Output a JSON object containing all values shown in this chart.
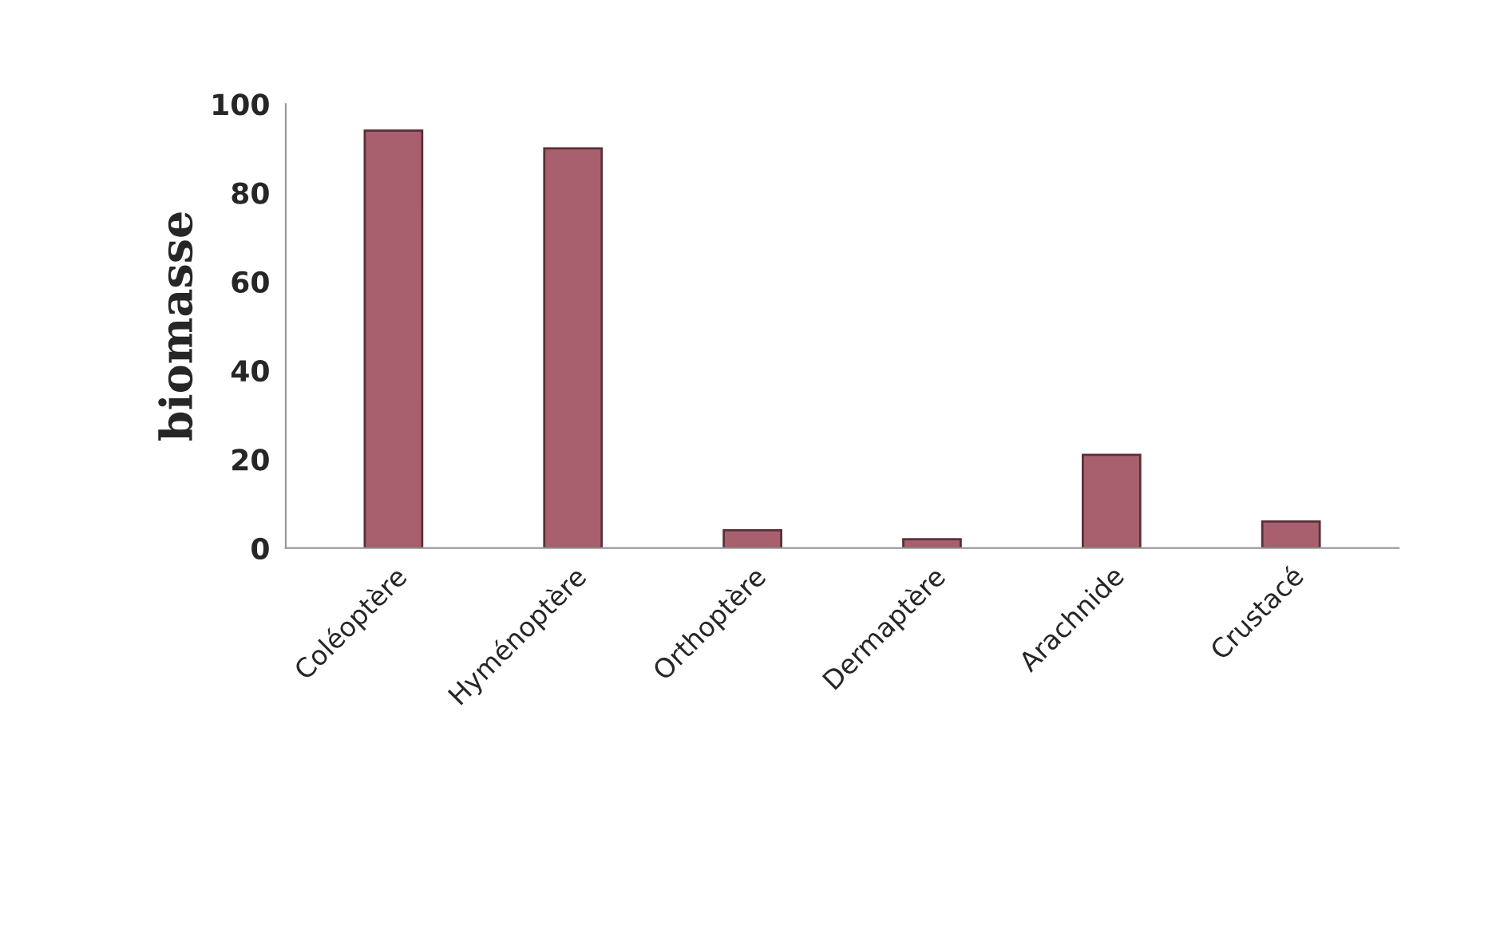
{
  "chart_data": {
    "type": "bar",
    "ylabel": "biomasse",
    "categories": [
      "Coléoptère",
      "Hyménoptère",
      "Orthoptère",
      "Dermaptère",
      "Arachnide",
      "Crustacé"
    ],
    "values": [
      94,
      90,
      4,
      2,
      21,
      6
    ],
    "color": "#a8606f",
    "ylim": [
      0,
      100
    ],
    "yticks": [
      0,
      20,
      40,
      60,
      80,
      100
    ],
    "grid": false
  }
}
